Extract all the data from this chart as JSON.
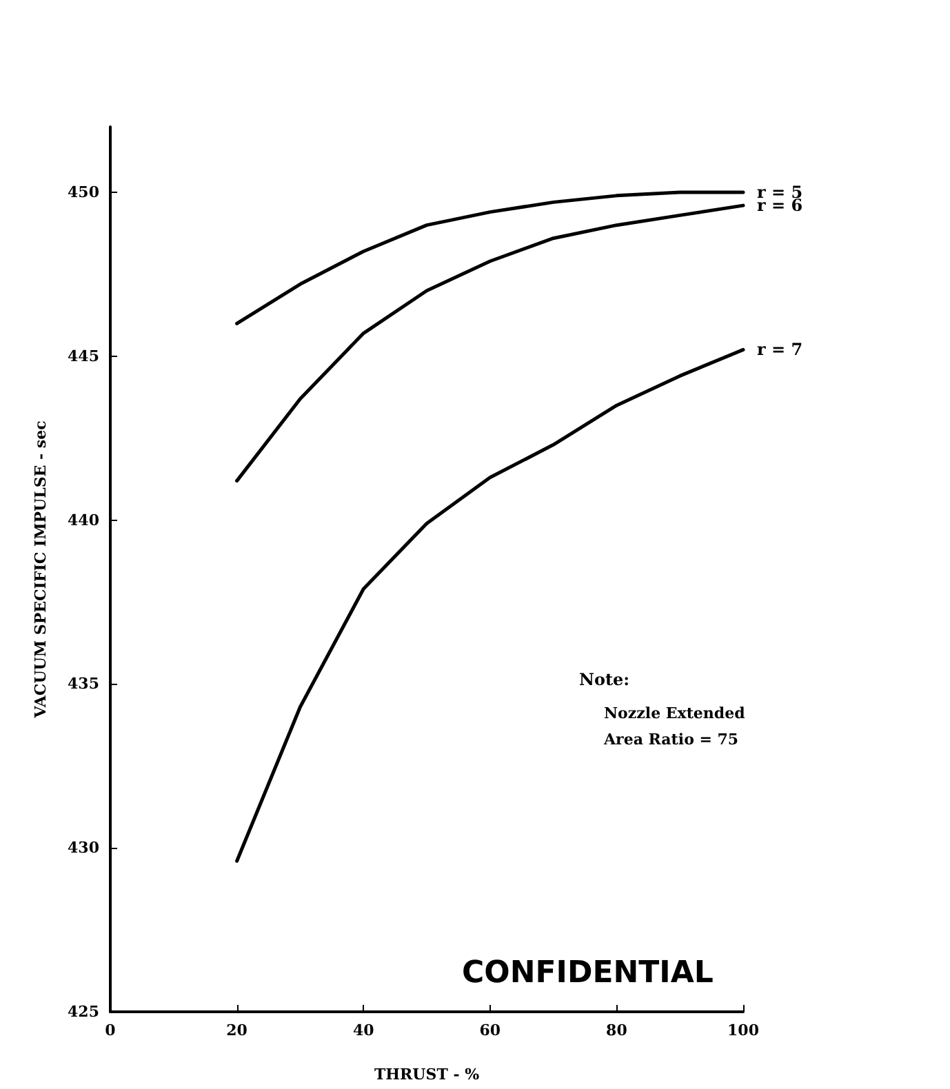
{
  "chart_data": {
    "type": "line",
    "xlabel": "THRUST - %",
    "ylabel": "VACUUM SPECIFIC IMPULSE - sec",
    "x": [
      20,
      30,
      40,
      50,
      60,
      70,
      80,
      90,
      100
    ],
    "series": [
      {
        "name": "r = 5",
        "color": "#000000",
        "values": [
          446.0,
          447.2,
          448.2,
          449.0,
          449.4,
          449.7,
          449.9,
          450.0,
          450.0
        ]
      },
      {
        "name": "r = 6",
        "color": "#000000",
        "values": [
          441.2,
          443.7,
          445.7,
          447.0,
          447.9,
          448.6,
          449.0,
          449.3,
          449.6
        ]
      },
      {
        "name": "r = 7",
        "color": "#000000",
        "values": [
          429.6,
          434.3,
          437.9,
          439.9,
          441.3,
          442.3,
          443.5,
          444.4,
          445.2
        ]
      }
    ],
    "xlim": [
      0,
      100
    ],
    "xticks": [
      0,
      20,
      40,
      60,
      80,
      100
    ],
    "ylim": [
      425,
      452
    ],
    "yticks": [
      425,
      430,
      435,
      440,
      445,
      450
    ],
    "grid": false,
    "legend": false,
    "marker": "none",
    "line_style": "solid",
    "annotations": [
      "Note:",
      "Nozzle Extended",
      "Area Ratio = 75",
      "CONFIDENTIAL"
    ]
  }
}
